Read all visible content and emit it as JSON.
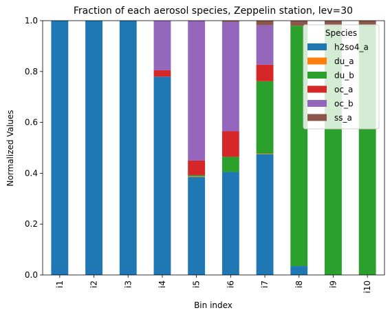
{
  "chart_data": {
    "type": "bar",
    "stacked": true,
    "title": "Fraction of each aerosol species, Zeppelin station, lev=30",
    "xlabel": "Bin index",
    "ylabel": "Normalized Values",
    "ylim": [
      0,
      1.0
    ],
    "yticks": [
      "0.0",
      "0.2",
      "0.4",
      "0.6",
      "0.8",
      "1.0"
    ],
    "categories": [
      "i1",
      "i2",
      "i3",
      "i4",
      "i5",
      "i6",
      "i7",
      "i8",
      "i9",
      "i10"
    ],
    "legend_title": "Species",
    "legend_position": "top-right",
    "grid": false,
    "series": [
      {
        "name": "h2so4_a",
        "color": "#1f77b4",
        "values": [
          1.0,
          1.0,
          1.0,
          0.78,
          0.385,
          0.405,
          0.475,
          0.035,
          0.0,
          0.0
        ]
      },
      {
        "name": "du_a",
        "color": "#ff7f0e",
        "values": [
          0.0,
          0.0,
          0.0,
          0.0,
          0.002,
          0.0,
          0.002,
          0.0,
          0.0,
          0.0
        ]
      },
      {
        "name": "du_b",
        "color": "#2ca02c",
        "values": [
          0.0,
          0.0,
          0.0,
          0.0,
          0.005,
          0.06,
          0.285,
          0.945,
          0.98,
          0.985
        ]
      },
      {
        "name": "oc_a",
        "color": "#d62728",
        "values": [
          0.0,
          0.0,
          0.0,
          0.025,
          0.058,
          0.1,
          0.065,
          0.0,
          0.0,
          0.0
        ]
      },
      {
        "name": "oc_b",
        "color": "#9467bd",
        "values": [
          0.0,
          0.0,
          0.0,
          0.195,
          0.55,
          0.43,
          0.155,
          0.0,
          0.0,
          0.0
        ]
      },
      {
        "name": "ss_a",
        "color": "#8c564b",
        "values": [
          0.0,
          0.0,
          0.0,
          0.0,
          0.0,
          0.005,
          0.018,
          0.02,
          0.02,
          0.015
        ]
      }
    ]
  }
}
